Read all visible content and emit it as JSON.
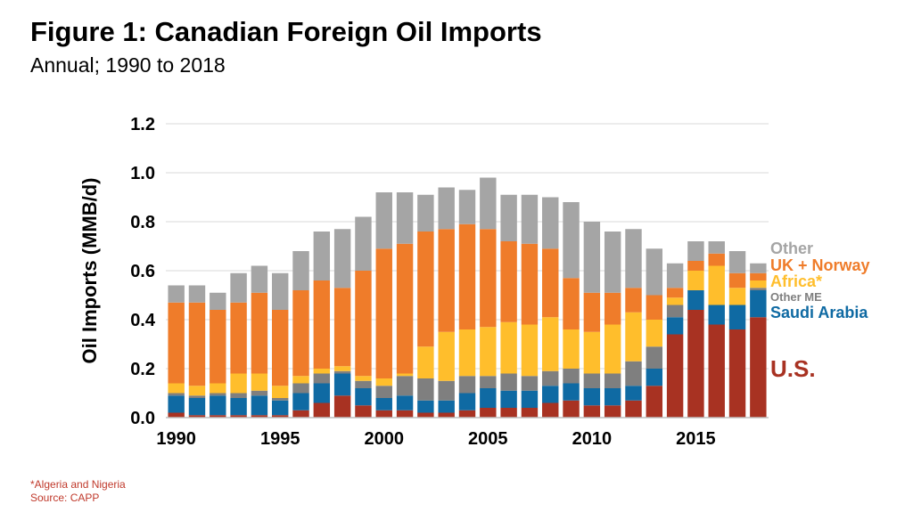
{
  "title": "Figure 1: Canadian Foreign Oil Imports",
  "subtitle": "Annual; 1990 to 2018",
  "footnote": "*Algeria and Nigeria",
  "source": "Source: CAPP",
  "chart_data": {
    "type": "bar",
    "stacked": true,
    "ylabel": "Oil Imports (MMB/d)",
    "xlabel": "",
    "ylim": [
      0,
      1.2
    ],
    "yticks": [
      "0.0",
      "0.2",
      "0.4",
      "0.6",
      "0.8",
      "1.0",
      "1.2"
    ],
    "xtick_labels": [
      "1990",
      "1995",
      "2000",
      "2005",
      "2010",
      "2015"
    ],
    "grid": true,
    "categories": [
      1990,
      1991,
      1992,
      1993,
      1994,
      1995,
      1996,
      1997,
      1998,
      1999,
      2000,
      2001,
      2002,
      2003,
      2004,
      2005,
      2006,
      2007,
      2008,
      2009,
      2010,
      2011,
      2012,
      2013,
      2014,
      2015,
      2016,
      2017,
      2018
    ],
    "series": [
      {
        "name": "U.S.",
        "color": "#a83222",
        "values": [
          0.02,
          0.01,
          0.01,
          0.01,
          0.01,
          0.01,
          0.03,
          0.06,
          0.09,
          0.05,
          0.03,
          0.03,
          0.02,
          0.02,
          0.03,
          0.04,
          0.04,
          0.04,
          0.06,
          0.07,
          0.05,
          0.05,
          0.07,
          0.13,
          0.34,
          0.44,
          0.38,
          0.36,
          0.41
        ]
      },
      {
        "name": "Saudi Arabia",
        "color": "#0f6aa3",
        "values": [
          0.07,
          0.07,
          0.08,
          0.07,
          0.08,
          0.06,
          0.07,
          0.08,
          0.09,
          0.07,
          0.05,
          0.06,
          0.05,
          0.05,
          0.07,
          0.08,
          0.07,
          0.07,
          0.07,
          0.07,
          0.07,
          0.07,
          0.06,
          0.07,
          0.07,
          0.08,
          0.08,
          0.1,
          0.11
        ]
      },
      {
        "name": "Other ME",
        "color": "#7f7f7f",
        "values": [
          0.01,
          0.01,
          0.01,
          0.02,
          0.02,
          0.01,
          0.04,
          0.04,
          0.01,
          0.03,
          0.05,
          0.08,
          0.09,
          0.08,
          0.07,
          0.05,
          0.07,
          0.06,
          0.06,
          0.06,
          0.06,
          0.06,
          0.1,
          0.09,
          0.05,
          0.0,
          0.0,
          0.0,
          0.01
        ]
      },
      {
        "name": "Africa*",
        "color": "#ffbe2c",
        "values": [
          0.04,
          0.04,
          0.04,
          0.08,
          0.07,
          0.05,
          0.03,
          0.02,
          0.02,
          0.02,
          0.03,
          0.01,
          0.13,
          0.2,
          0.19,
          0.2,
          0.21,
          0.21,
          0.22,
          0.16,
          0.17,
          0.2,
          0.2,
          0.11,
          0.03,
          0.08,
          0.16,
          0.07,
          0.03
        ]
      },
      {
        "name": "UK + Norway",
        "color": "#ef7c2a",
        "values": [
          0.33,
          0.34,
          0.3,
          0.29,
          0.33,
          0.31,
          0.35,
          0.36,
          0.32,
          0.43,
          0.53,
          0.53,
          0.47,
          0.42,
          0.43,
          0.4,
          0.33,
          0.33,
          0.28,
          0.21,
          0.16,
          0.13,
          0.1,
          0.1,
          0.04,
          0.04,
          0.05,
          0.06,
          0.03
        ]
      },
      {
        "name": "Other",
        "color": "#a5a5a5",
        "values": [
          0.07,
          0.07,
          0.07,
          0.12,
          0.11,
          0.15,
          0.16,
          0.2,
          0.24,
          0.22,
          0.23,
          0.21,
          0.15,
          0.17,
          0.14,
          0.21,
          0.19,
          0.2,
          0.21,
          0.31,
          0.29,
          0.25,
          0.24,
          0.19,
          0.1,
          0.08,
          0.05,
          0.09,
          0.04
        ]
      }
    ],
    "legend": {
      "placement": "right",
      "labels": [
        "Other",
        "UK + Norway",
        "Africa*",
        "Other ME",
        "Saudi Arabia",
        "U.S."
      ]
    }
  }
}
